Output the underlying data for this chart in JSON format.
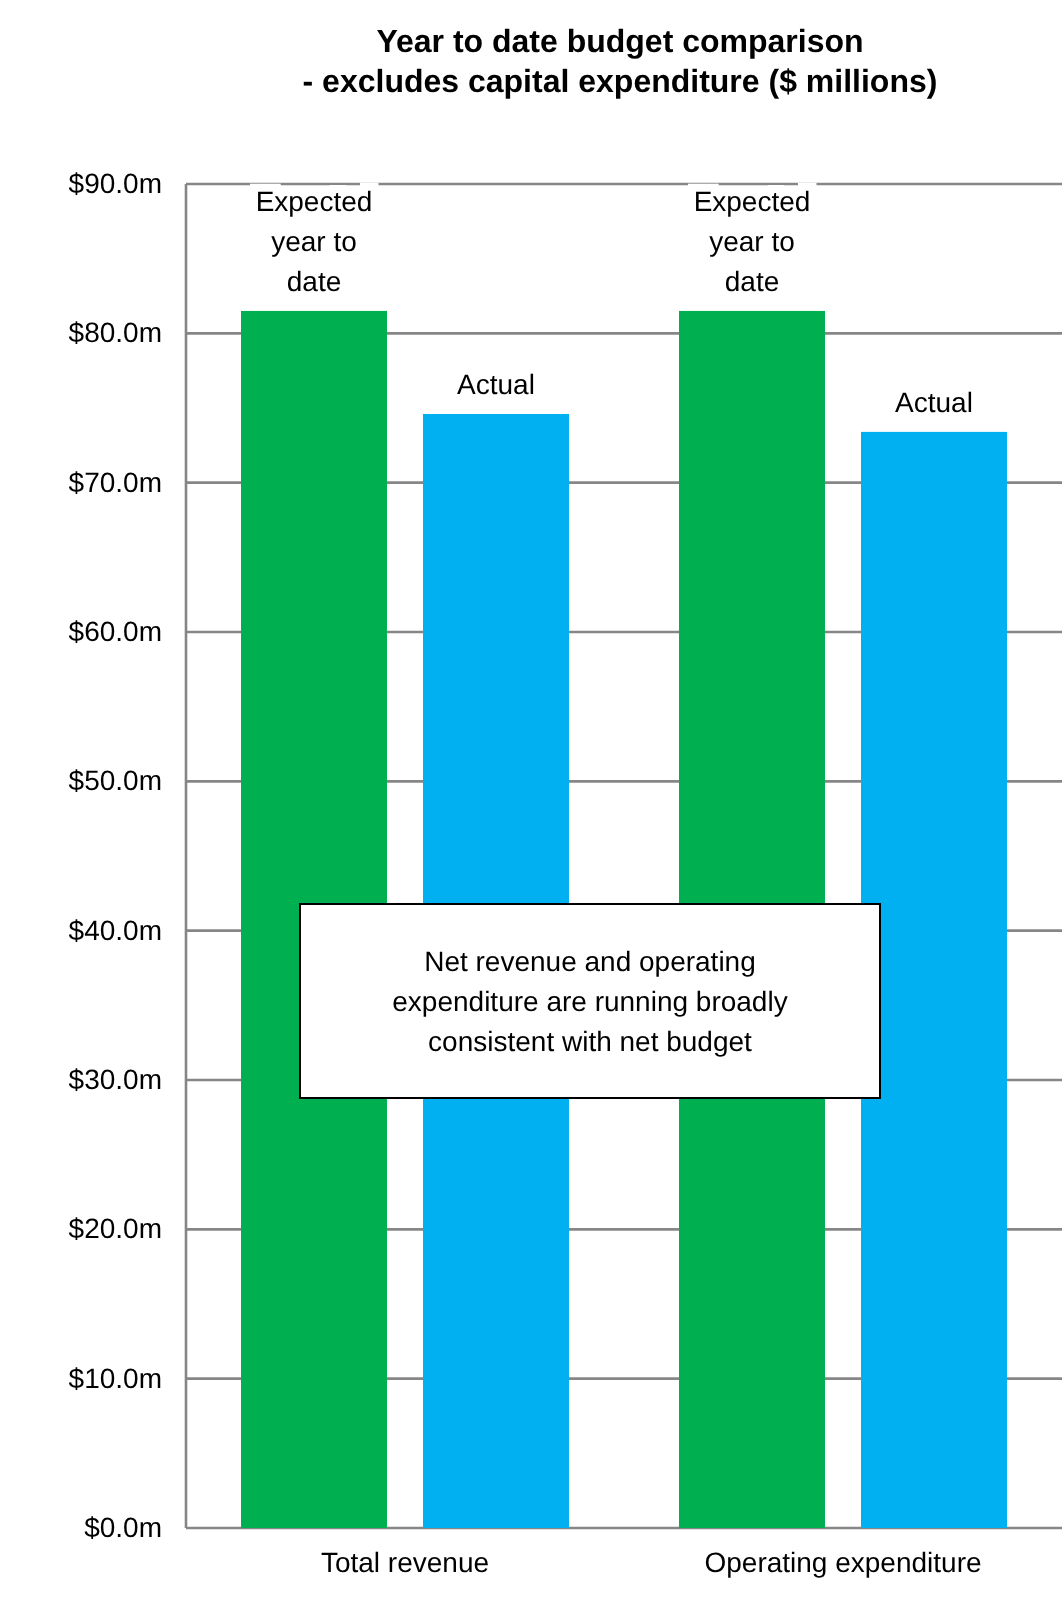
{
  "chart_data": {
    "type": "bar",
    "title": "Year to date budget comparison\n- excludes capital expenditure ($ millions)",
    "categories": [
      "Total revenue",
      "Operating expenditure"
    ],
    "series": [
      {
        "name": "Expected\nyear to\ndate",
        "color": "#00b050",
        "values": [
          81.5,
          81.5
        ]
      },
      {
        "name": "Actual",
        "color": "#00b0f0",
        "values": [
          74.6,
          73.4
        ]
      }
    ],
    "ylim": [
      0,
      90
    ],
    "yticks": [
      {
        "value": 0,
        "label": "$0.0m"
      },
      {
        "value": 10,
        "label": "$10.0m"
      },
      {
        "value": 20,
        "label": "$20.0m"
      },
      {
        "value": 30,
        "label": "$30.0m"
      },
      {
        "value": 40,
        "label": "$40.0m"
      },
      {
        "value": 50,
        "label": "$50.0m"
      },
      {
        "value": 60,
        "label": "$60.0m"
      },
      {
        "value": 70,
        "label": "$70.0m"
      },
      {
        "value": 80,
        "label": "$80.0m"
      },
      {
        "value": 90,
        "label": "$90.0m"
      }
    ],
    "grid": "y",
    "annotations": [
      "Net revenue and operating\nexpenditure are running broadly\nconsistent with net budget"
    ]
  }
}
